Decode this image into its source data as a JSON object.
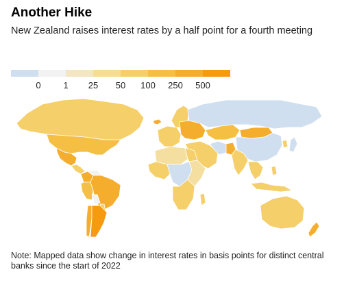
{
  "title": "Another Hike",
  "subtitle": "New Zealand raises interest rates by a half point for a fourth meeting",
  "legend": {
    "colors": [
      "#d0dff0",
      "#f2f2f2",
      "#f3e6c2",
      "#f7dc93",
      "#f5cf6a",
      "#f5bf44",
      "#f5ad2e",
      "#f69a10"
    ],
    "labels": [
      "0",
      "1",
      "25",
      "50",
      "100",
      "250",
      "500"
    ]
  },
  "map": {
    "regions": [
      {
        "name": "Canada",
        "color": "#f5cf6a"
      },
      {
        "name": "United States",
        "color": "#f5bf44"
      },
      {
        "name": "Mexico",
        "color": "#f5ad2e"
      },
      {
        "name": "Central America",
        "color": "#f5cf6a"
      },
      {
        "name": "Colombia",
        "color": "#f5ad2e"
      },
      {
        "name": "Venezuela",
        "color": "#f2f2f2"
      },
      {
        "name": "Brazil",
        "color": "#f5ad2e"
      },
      {
        "name": "Peru",
        "color": "#f5bf44"
      },
      {
        "name": "Bolivia",
        "color": "#f2f2f2"
      },
      {
        "name": "Chile",
        "color": "#f5ad2e"
      },
      {
        "name": "Argentina",
        "color": "#f69a10"
      },
      {
        "name": "Paraguay",
        "color": "#f5cf6a"
      },
      {
        "name": "Greenland",
        "color": "#ffffff"
      },
      {
        "name": "Iceland",
        "color": "#f5ad2e"
      },
      {
        "name": "Scandinavia",
        "color": "#f5cf6a"
      },
      {
        "name": "Western Europe",
        "color": "#f5cf6a"
      },
      {
        "name": "Eastern Europe",
        "color": "#f5ad2e"
      },
      {
        "name": "Russia",
        "color": "#d0dff0"
      },
      {
        "name": "Kazakhstan",
        "color": "#f5bf44"
      },
      {
        "name": "Mongolia",
        "color": "#f5ad2e"
      },
      {
        "name": "China",
        "color": "#d0dff0"
      },
      {
        "name": "Japan",
        "color": "#d0dff0"
      },
      {
        "name": "Korea",
        "color": "#f5cf6a"
      },
      {
        "name": "Middle East",
        "color": "#f5cf6a"
      },
      {
        "name": "Iran",
        "color": "#d0dff0"
      },
      {
        "name": "Pakistan",
        "color": "#f5ad2e"
      },
      {
        "name": "India",
        "color": "#f5cf6a"
      },
      {
        "name": "Southeast Asia",
        "color": "#f5cf6a"
      },
      {
        "name": "Indonesia",
        "color": "#f5cf6a"
      },
      {
        "name": "Philippines",
        "color": "#f5cf6a"
      },
      {
        "name": "North Africa",
        "color": "#f5dfa0"
      },
      {
        "name": "Egypt",
        "color": "#f5cf6a"
      },
      {
        "name": "West Africa",
        "color": "#f5cf6a"
      },
      {
        "name": "Central Africa",
        "color": "#d0dff0"
      },
      {
        "name": "East Africa",
        "color": "#f5dfa0"
      },
      {
        "name": "Southern Africa",
        "color": "#f5cf6a"
      },
      {
        "name": "Madagascar",
        "color": "#f5cf6a"
      },
      {
        "name": "Australia",
        "color": "#f5cf6a"
      },
      {
        "name": "New Zealand",
        "color": "#f5ad2e"
      }
    ]
  },
  "note": "Note: Mapped data show change in interest rates in basis points for distinct central banks since the start of 2022"
}
